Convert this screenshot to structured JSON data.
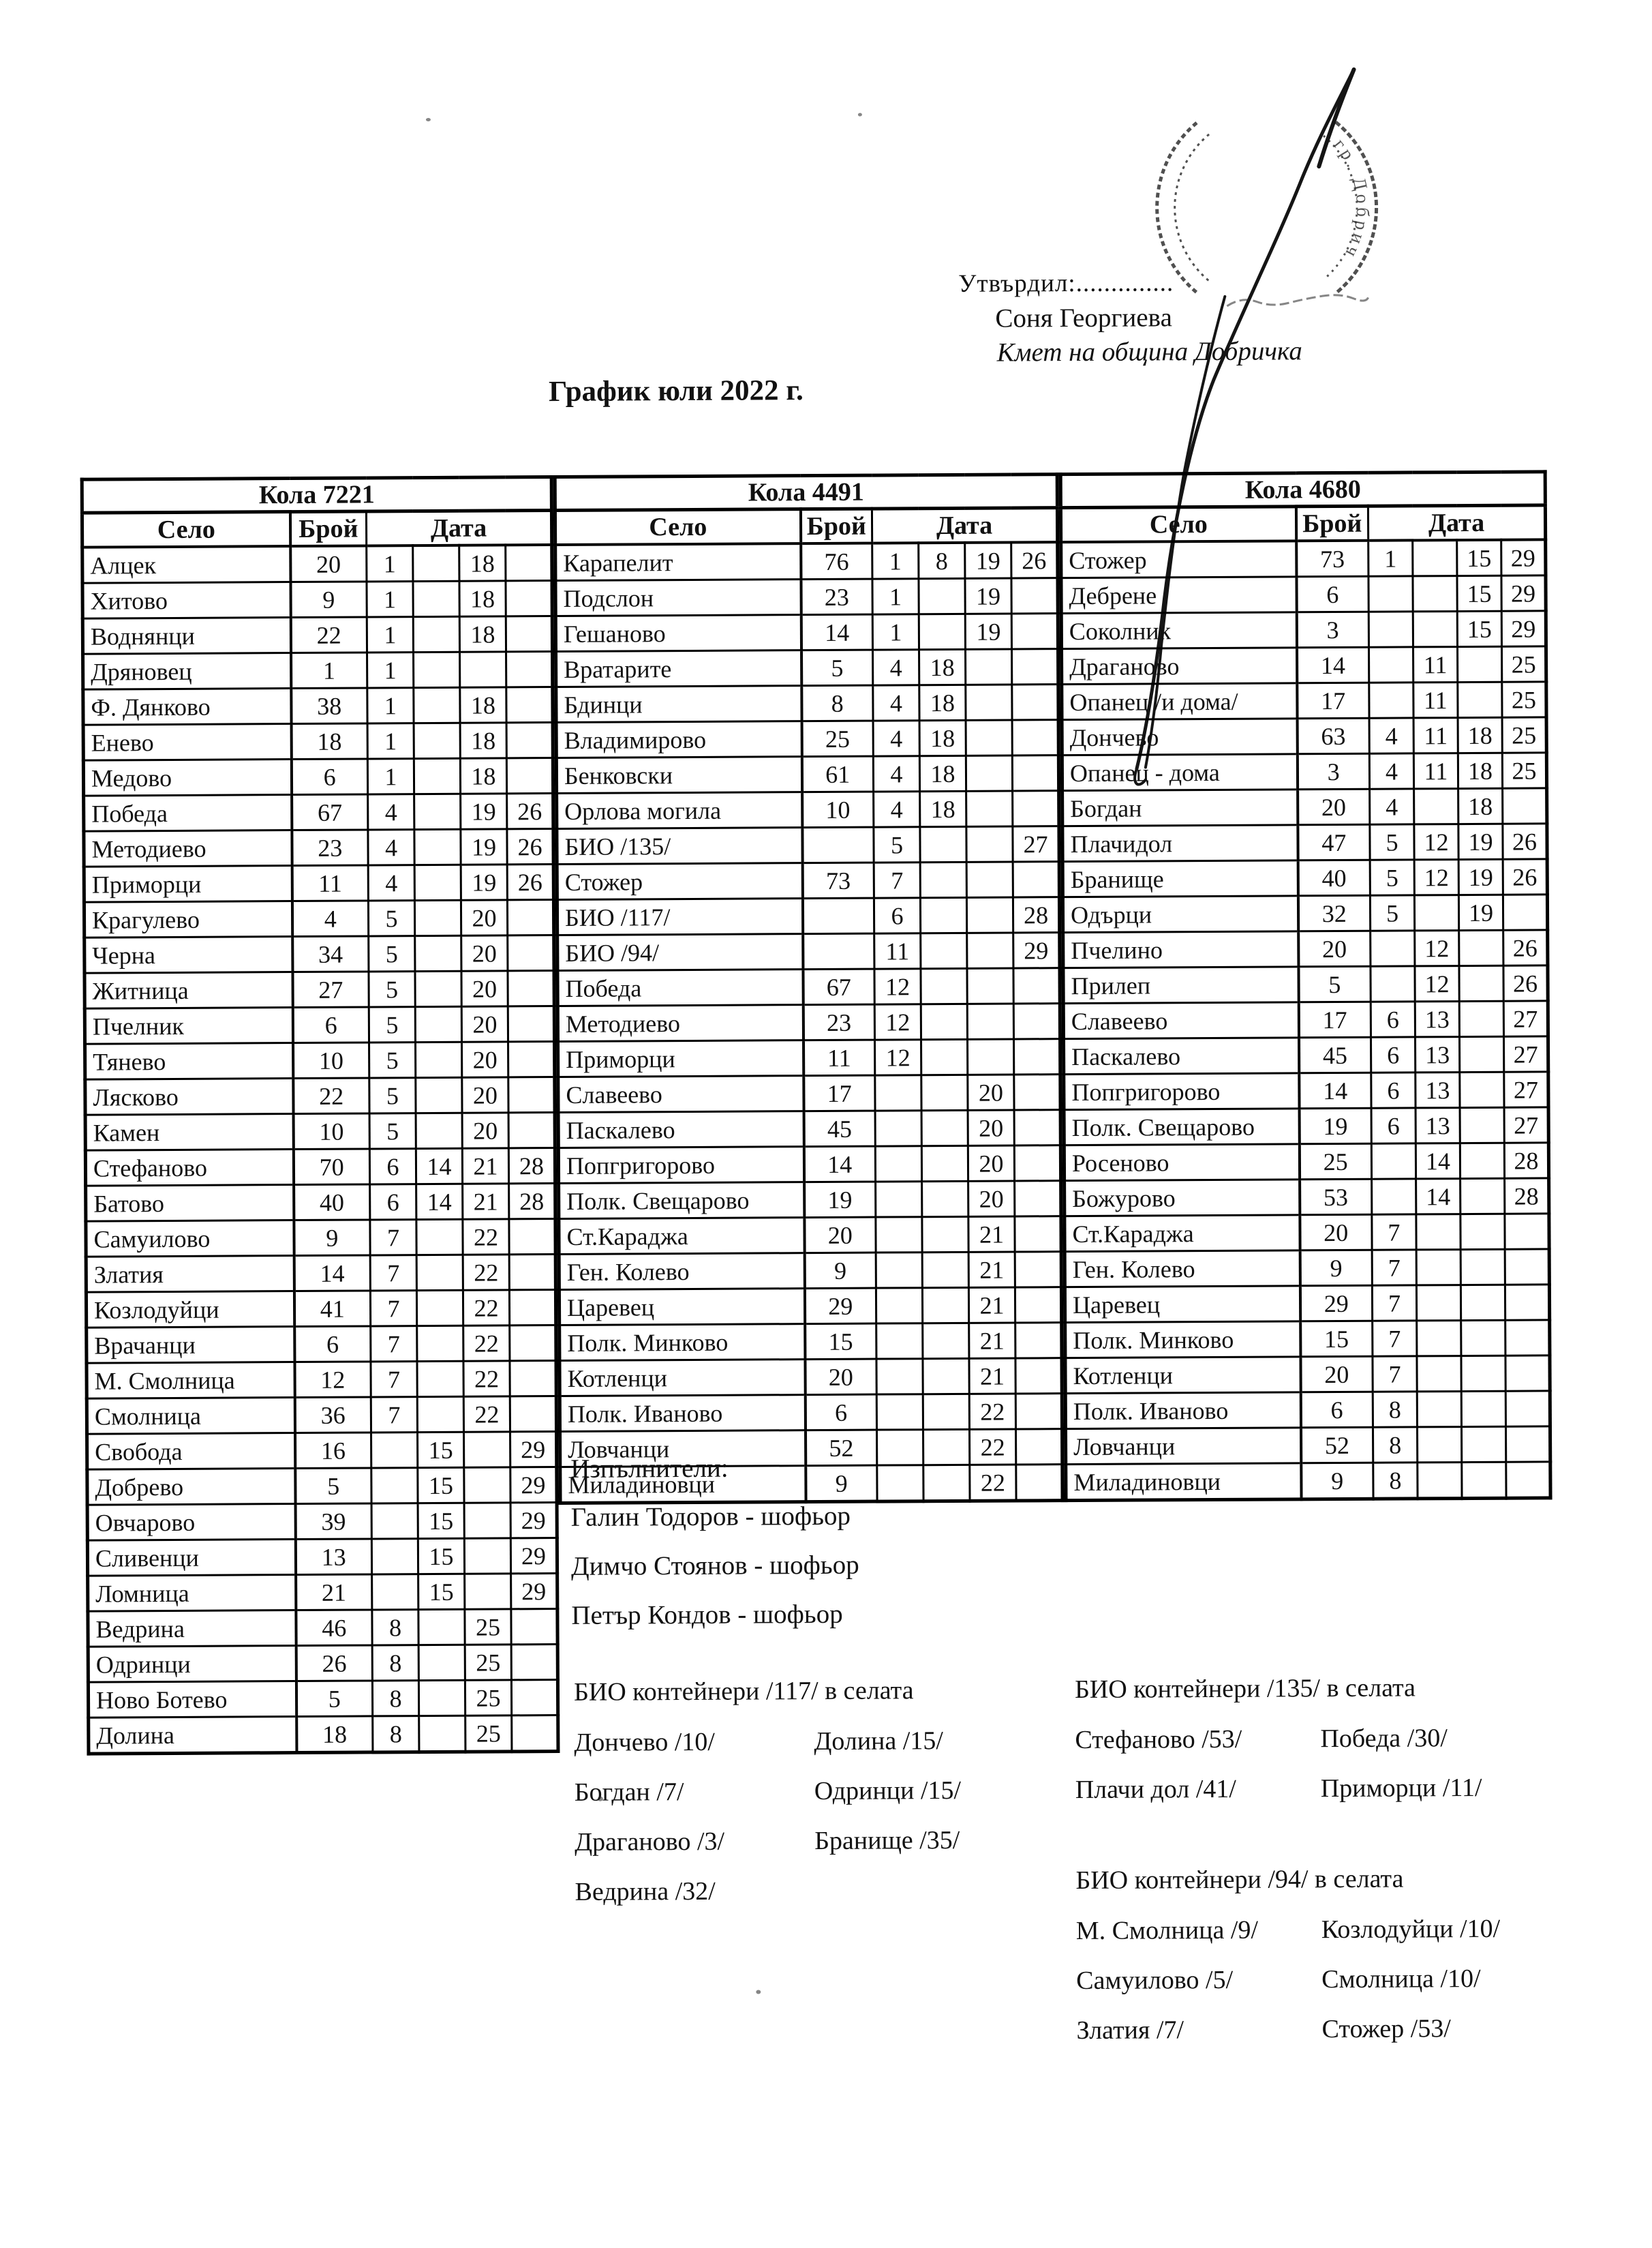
{
  "header": {
    "approved_label": "Утвърдил:..............",
    "approver_name": "Соня Георгиева",
    "approver_title": "Кмет  на община Добричка",
    "stamp_text": "гр. Добрич"
  },
  "title": "График юли 2022 г.",
  "table": {
    "groups": [
      {
        "label": "Кола 7221",
        "columns": {
          "village": "Село",
          "count": "Брой",
          "date": "Дата"
        },
        "rows": [
          [
            "Алцек",
            "20",
            "1",
            "",
            "18",
            ""
          ],
          [
            "Хитово",
            "9",
            "1",
            "",
            "18",
            ""
          ],
          [
            "Воднянци",
            "22",
            "1",
            "",
            "18",
            ""
          ],
          [
            "Дряновец",
            "1",
            "1",
            "",
            "",
            ""
          ],
          [
            "Ф. Дянково",
            "38",
            "1",
            "",
            "18",
            ""
          ],
          [
            "Енево",
            "18",
            "1",
            "",
            "18",
            ""
          ],
          [
            "Медово",
            "6",
            "1",
            "",
            "18",
            ""
          ],
          [
            "Победа",
            "67",
            "4",
            "",
            "19",
            "26"
          ],
          [
            "Методиево",
            "23",
            "4",
            "",
            "19",
            "26"
          ],
          [
            "Приморци",
            "11",
            "4",
            "",
            "19",
            "26"
          ],
          [
            "Крагулево",
            "4",
            "5",
            "",
            "20",
            ""
          ],
          [
            "Черна",
            "34",
            "5",
            "",
            "20",
            ""
          ],
          [
            "Житница",
            "27",
            "5",
            "",
            "20",
            ""
          ],
          [
            "Пчелник",
            "6",
            "5",
            "",
            "20",
            ""
          ],
          [
            "Тянево",
            "10",
            "5",
            "",
            "20",
            ""
          ],
          [
            "Лясково",
            "22",
            "5",
            "",
            "20",
            ""
          ],
          [
            "Камен",
            "10",
            "5",
            "",
            "20",
            ""
          ],
          [
            "Стефаново",
            "70",
            "6",
            "14",
            "21",
            "28"
          ],
          [
            "Батово",
            "40",
            "6",
            "14",
            "21",
            "28"
          ],
          [
            "Самуилово",
            "9",
            "7",
            "",
            "22",
            ""
          ],
          [
            "Златия",
            "14",
            "7",
            "",
            "22",
            ""
          ],
          [
            "Козлодуйци",
            "41",
            "7",
            "",
            "22",
            ""
          ],
          [
            "Врачанци",
            "6",
            "7",
            "",
            "22",
            ""
          ],
          [
            "М. Смолница",
            "12",
            "7",
            "",
            "22",
            ""
          ],
          [
            "Смолница",
            "36",
            "7",
            "",
            "22",
            ""
          ],
          [
            "Свобода",
            "16",
            "",
            "15",
            "",
            "29"
          ],
          [
            "Добрево",
            "5",
            "",
            "15",
            "",
            "29"
          ],
          [
            "Овчарово",
            "39",
            "",
            "15",
            "",
            "29"
          ],
          [
            "Сливенци",
            "13",
            "",
            "15",
            "",
            "29"
          ],
          [
            "Ломница",
            "21",
            "",
            "15",
            "",
            "29"
          ],
          [
            "Ведрина",
            "46",
            "8",
            "",
            "25",
            ""
          ],
          [
            "Одринци",
            "26",
            "8",
            "",
            "25",
            ""
          ],
          [
            "Ново Ботево",
            "5",
            "8",
            "",
            "25",
            ""
          ],
          [
            "Долина",
            "18",
            "8",
            "",
            "25",
            ""
          ]
        ]
      },
      {
        "label": "Кола 4491",
        "columns": {
          "village": "Село",
          "count": "Брой",
          "date": "Дата"
        },
        "rows": [
          [
            "Карапелит",
            "76",
            "1",
            "8",
            "19",
            "26"
          ],
          [
            "Подслон",
            "23",
            "1",
            "",
            "19",
            ""
          ],
          [
            "Гешаново",
            "14",
            "1",
            "",
            "19",
            ""
          ],
          [
            "Вратарите",
            "5",
            "4",
            "18",
            "",
            ""
          ],
          [
            "Бдинци",
            "8",
            "4",
            "18",
            "",
            ""
          ],
          [
            "Владимирово",
            "25",
            "4",
            "18",
            "",
            ""
          ],
          [
            "Бенковски",
            "61",
            "4",
            "18",
            "",
            ""
          ],
          [
            "Орлова могила",
            "10",
            "4",
            "18",
            "",
            ""
          ],
          [
            "БИО /135/",
            "",
            "5",
            "",
            "",
            "27"
          ],
          [
            "Стожер",
            "73",
            "7",
            "",
            "",
            ""
          ],
          [
            "БИО /117/",
            "",
            "6",
            "",
            "",
            "28"
          ],
          [
            "БИО /94/",
            "",
            "11",
            "",
            "",
            "29"
          ],
          [
            "Победа",
            "67",
            "12",
            "",
            "",
            ""
          ],
          [
            "Методиево",
            "23",
            "12",
            "",
            "",
            ""
          ],
          [
            "Приморци",
            "11",
            "12",
            "",
            "",
            ""
          ],
          [
            "Славеево",
            "17",
            "",
            "",
            "20",
            ""
          ],
          [
            "Паскалево",
            "45",
            "",
            "",
            "20",
            ""
          ],
          [
            "Попгригорово",
            "14",
            "",
            "",
            "20",
            ""
          ],
          [
            "Полк. Свещарово",
            "19",
            "",
            "",
            "20",
            ""
          ],
          [
            "Ст.Караджа",
            "20",
            "",
            "",
            "21",
            ""
          ],
          [
            "Ген. Колево",
            "9",
            "",
            "",
            "21",
            ""
          ],
          [
            "Царевец",
            "29",
            "",
            "",
            "21",
            ""
          ],
          [
            "Полк. Минково",
            "15",
            "",
            "",
            "21",
            ""
          ],
          [
            "Котленци",
            "20",
            "",
            "",
            "21",
            ""
          ],
          [
            "Полк. Иваново",
            "6",
            "",
            "",
            "22",
            ""
          ],
          [
            "Ловчанци",
            "52",
            "",
            "",
            "22",
            ""
          ],
          [
            "Миладиновци",
            "9",
            "",
            "",
            "22",
            ""
          ]
        ]
      },
      {
        "label": "Кола 4680",
        "columns": {
          "village": "Село",
          "count": "Брой",
          "date": "Дата"
        },
        "rows": [
          [
            "Стожер",
            "73",
            "1",
            "",
            "15",
            "29"
          ],
          [
            "Дебрене",
            "6",
            "",
            "",
            "15",
            "29"
          ],
          [
            "Соколник",
            "3",
            "",
            "",
            "15",
            "29"
          ],
          [
            "Драганово",
            "14",
            "",
            "11",
            "",
            "25"
          ],
          [
            "Опанец /и дома/",
            "17",
            "",
            "11",
            "",
            "25"
          ],
          [
            "Дончево",
            "63",
            "4",
            "11",
            "18",
            "25"
          ],
          [
            "Опанец - дома",
            "3",
            "4",
            "11",
            "18",
            "25"
          ],
          [
            "Богдан",
            "20",
            "4",
            "",
            "18",
            ""
          ],
          [
            "Плачидол",
            "47",
            "5",
            "12",
            "19",
            "26"
          ],
          [
            "Бранище",
            "40",
            "5",
            "12",
            "19",
            "26"
          ],
          [
            "Одърци",
            "32",
            "5",
            "",
            "19",
            ""
          ],
          [
            "Пчелино",
            "20",
            "",
            "12",
            "",
            "26"
          ],
          [
            "Прилеп",
            "5",
            "",
            "12",
            "",
            "26"
          ],
          [
            "Славеево",
            "17",
            "6",
            "13",
            "",
            "27"
          ],
          [
            "Паскалево",
            "45",
            "6",
            "13",
            "",
            "27"
          ],
          [
            "Попгригорово",
            "14",
            "6",
            "13",
            "",
            "27"
          ],
          [
            "Полк. Свещарово",
            "19",
            "6",
            "13",
            "",
            "27"
          ],
          [
            "Росеново",
            "25",
            "",
            "14",
            "",
            "28"
          ],
          [
            "Божурово",
            "53",
            "",
            "14",
            "",
            "28"
          ],
          [
            "Ст.Караджа",
            "20",
            "7",
            "",
            "",
            ""
          ],
          [
            "Ген. Колево",
            "9",
            "7",
            "",
            "",
            ""
          ],
          [
            "Царевец",
            "29",
            "7",
            "",
            "",
            ""
          ],
          [
            "Полк. Минково",
            "15",
            "7",
            "",
            "",
            ""
          ],
          [
            "Котленци",
            "20",
            "7",
            "",
            "",
            ""
          ],
          [
            "Полк. Иваново",
            "6",
            "8",
            "",
            "",
            ""
          ],
          [
            "Ловчанци",
            "52",
            "8",
            "",
            "",
            ""
          ],
          [
            "Миладиновци",
            "9",
            "8",
            "",
            "",
            ""
          ]
        ]
      }
    ]
  },
  "executors": {
    "title": "Изпълнители:",
    "drivers": [
      "Галин Тодоров - шофьор",
      "Димчо Стоянов - шофьор",
      "Петър Кондов - шофьор"
    ]
  },
  "bio_sections": {
    "b117": {
      "title": "БИО контейнери /117/ в селата",
      "pairs": [
        [
          "Дончево /10/",
          "Долина /15/"
        ],
        [
          "Богдан /7/",
          "Одринци /15/"
        ],
        [
          "Драганово /3/",
          "Бранище /35/"
        ],
        [
          "Ведрина /32/",
          ""
        ]
      ]
    },
    "b135": {
      "title": "БИО контейнери /135/ в селата",
      "pairs": [
        [
          "Стефаново /53/",
          "Победа /30/"
        ],
        [
          "Плачи дол /41/",
          "Приморци /11/"
        ]
      ]
    },
    "b94": {
      "title": "БИО контейнери /94/ в селата",
      "pairs": [
        [
          "М. Смолница /9/",
          "Козлодуйци /10/"
        ],
        [
          "Самуилово /5/",
          "Смолница /10/"
        ],
        [
          "Златия /7/",
          "Стожер /53/"
        ]
      ]
    }
  }
}
